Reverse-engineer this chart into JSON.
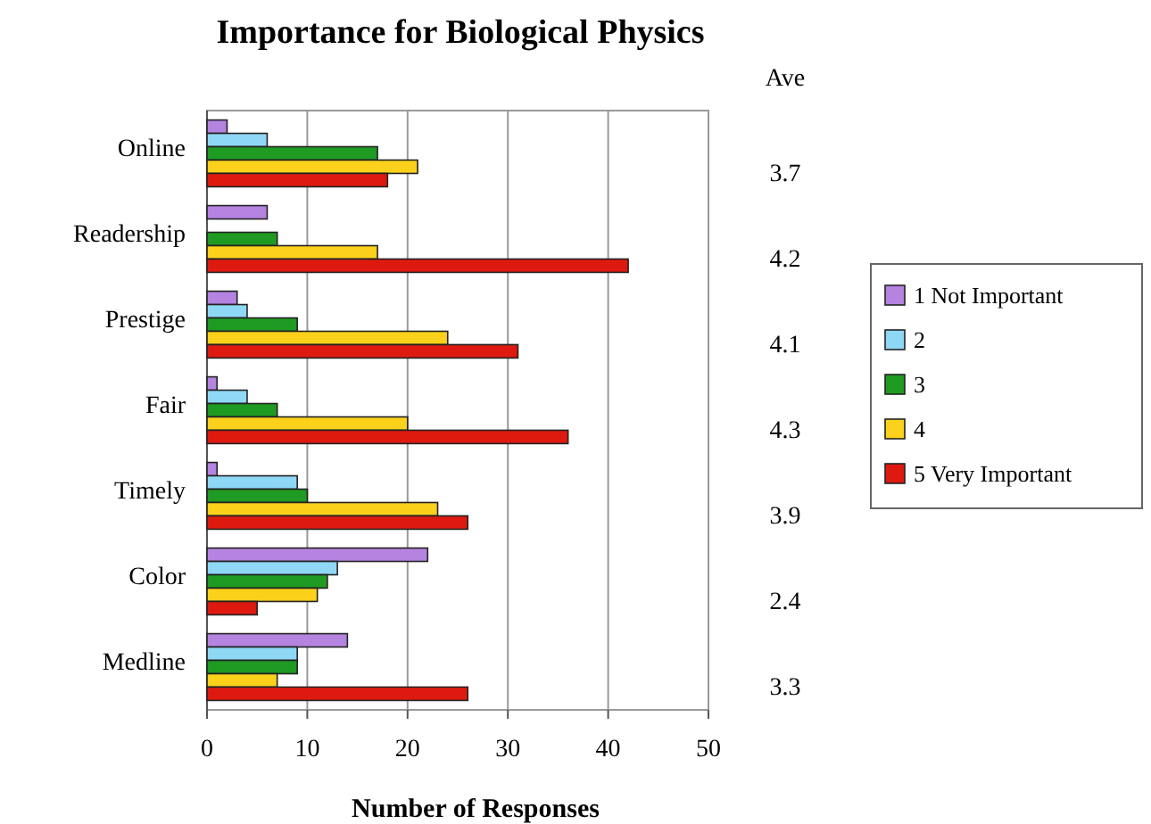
{
  "chart_data": {
    "type": "bar",
    "orientation": "horizontal",
    "title": "Importance for Biological Physics",
    "xlabel": "Number of Responses",
    "categories": [
      "Online",
      "Readership",
      "Prestige",
      "Fair",
      "Timely",
      "Color",
      "Medline"
    ],
    "series": [
      {
        "name": "1 Not Important",
        "color": "#b583e0",
        "values": [
          2,
          6,
          3,
          1,
          1,
          22,
          14
        ]
      },
      {
        "name": "2",
        "color": "#8fd8f5",
        "values": [
          6,
          0,
          4,
          4,
          9,
          13,
          9
        ]
      },
      {
        "name": "3",
        "color": "#1f9a22",
        "values": [
          17,
          7,
          9,
          7,
          10,
          12,
          9
        ]
      },
      {
        "name": "4",
        "color": "#fbd11c",
        "values": [
          21,
          17,
          24,
          20,
          23,
          11,
          7
        ]
      },
      {
        "name": "5 Very Important",
        "color": "#de1a10",
        "values": [
          18,
          42,
          31,
          36,
          26,
          5,
          26
        ]
      }
    ],
    "xlim": [
      0,
      50
    ],
    "xticks": [
      0,
      10,
      20,
      30,
      40,
      50
    ],
    "grid": "x",
    "legend": "right",
    "annotations": [
      "Ave",
      "3.7",
      "4.2",
      "4.1",
      "4.3",
      "3.9",
      "2.4",
      "3.3"
    ]
  }
}
